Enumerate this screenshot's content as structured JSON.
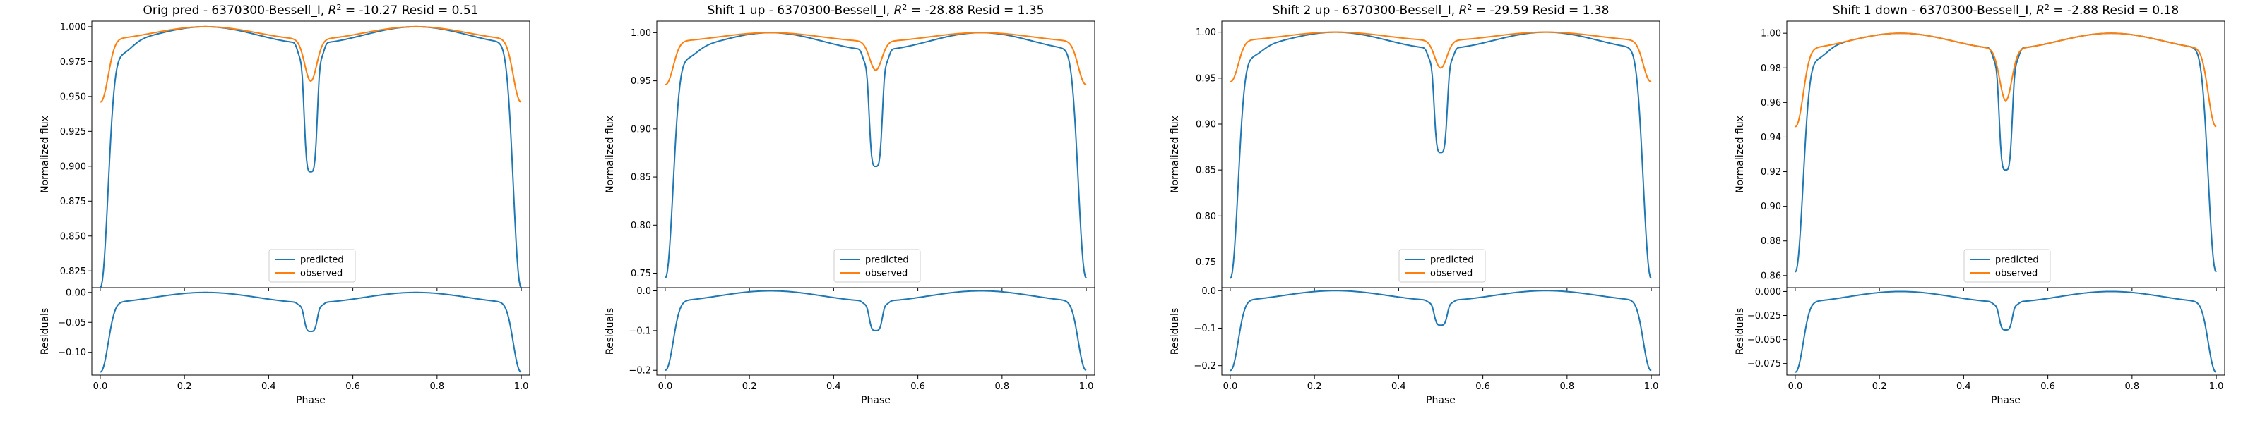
{
  "colors": {
    "predicted": "#1f77b4",
    "observed": "#ff7f0e",
    "frame": "#000000",
    "legend_border": "#cccccc"
  },
  "chart_data": [
    {
      "type": "line",
      "title_prefix": "Orig pred - 6370300-Bessell_I, ",
      "r2_symbol": "R",
      "r2_exp": "2",
      "title_suffix": " = -10.27 Resid = 0.51",
      "ylabel": "Normalized flux",
      "ylim": [
        0.813,
        1.004
      ],
      "yticks": [
        0.825,
        0.85,
        0.875,
        0.9,
        0.925,
        0.95,
        0.975,
        1.0
      ],
      "yticklabels": [
        "0.825",
        "0.850",
        "0.875",
        "0.900",
        "0.925",
        "0.950",
        "0.975",
        "1.000"
      ],
      "pred_shape": {
        "min": 0.813,
        "max": 1.0,
        "dip": 0.896,
        "shoulder": 0.974,
        "plateau_dip": 0.988
      },
      "obs_shape": {
        "edge": 0.946,
        "plateau": 0.991,
        "max": 1.0,
        "dip": 0.961
      },
      "legend": [
        "predicted",
        "observed"
      ],
      "resid": {
        "ylabel": "Residuals",
        "xlabel": "Phase",
        "ylim": [
          -0.138,
          0.008
        ],
        "yticks": [
          0.0,
          -0.05,
          -0.1
        ],
        "yticklabels": [
          "0.00",
          "−0.05",
          "−0.10"
        ],
        "shape": {
          "min": -0.133,
          "dip": -0.065,
          "shoulder": -0.017
        }
      },
      "xlim": [
        -0.02,
        1.02
      ],
      "xticks": [
        0.0,
        0.2,
        0.4,
        0.6,
        0.8,
        1.0
      ],
      "xticklabels": [
        "0.0",
        "0.2",
        "0.4",
        "0.6",
        "0.8",
        "1.0"
      ]
    },
    {
      "type": "line",
      "title_prefix": "Shift 1 up - 6370300-Bessell_I, ",
      "r2_symbol": "R",
      "r2_exp": "2",
      "title_suffix": " = -28.88 Resid = 1.35",
      "ylabel": "Normalized flux",
      "ylim": [
        0.735,
        1.012
      ],
      "yticks": [
        0.75,
        0.8,
        0.85,
        0.9,
        0.95,
        1.0
      ],
      "yticklabels": [
        "0.75",
        "0.80",
        "0.85",
        "0.90",
        "0.95",
        "1.00"
      ],
      "pred_shape": {
        "min": 0.745,
        "max": 1.0,
        "dip": 0.861,
        "shoulder": 0.965,
        "plateau_dip": 0.982
      },
      "obs_shape": {
        "edge": 0.946,
        "plateau": 0.991,
        "max": 1.0,
        "dip": 0.961
      },
      "legend": [
        "predicted",
        "observed"
      ],
      "resid": {
        "ylabel": "Residuals",
        "xlabel": "Phase",
        "ylim": [
          -0.212,
          0.008
        ],
        "yticks": [
          0.0,
          -0.1,
          -0.2
        ],
        "yticklabels": [
          "0.0",
          "−0.1",
          "−0.2"
        ],
        "shape": {
          "min": -0.2,
          "dip": -0.1,
          "shoulder": -0.026
        }
      },
      "xlim": [
        -0.02,
        1.02
      ],
      "xticks": [
        0.0,
        0.2,
        0.4,
        0.6,
        0.8,
        1.0
      ],
      "xticklabels": [
        "0.0",
        "0.2",
        "0.4",
        "0.6",
        "0.8",
        "1.0"
      ]
    },
    {
      "type": "line",
      "title_prefix": "Shift 2 up - 6370300-Bessell_I, ",
      "r2_symbol": "R",
      "r2_exp": "2",
      "title_suffix": " = -29.59 Resid = 1.38",
      "ylabel": "Normalized flux",
      "ylim": [
        0.722,
        1.012
      ],
      "yticks": [
        0.75,
        0.8,
        0.85,
        0.9,
        0.95,
        1.0
      ],
      "yticklabels": [
        "0.75",
        "0.80",
        "0.85",
        "0.90",
        "0.95",
        "1.00"
      ],
      "pred_shape": {
        "min": 0.732,
        "max": 1.0,
        "dip": 0.869,
        "shoulder": 0.965,
        "plateau_dip": 0.982
      },
      "obs_shape": {
        "edge": 0.946,
        "plateau": 0.991,
        "max": 1.0,
        "dip": 0.961
      },
      "legend": [
        "predicted",
        "observed"
      ],
      "resid": {
        "ylabel": "Residuals",
        "xlabel": "Phase",
        "ylim": [
          -0.225,
          0.008
        ],
        "yticks": [
          0.0,
          -0.1,
          -0.2
        ],
        "yticklabels": [
          "0.0",
          "−0.1",
          "−0.2"
        ],
        "shape": {
          "min": -0.213,
          "dip": -0.092,
          "shoulder": -0.026
        }
      },
      "xlim": [
        -0.02,
        1.02
      ],
      "xticks": [
        0.0,
        0.2,
        0.4,
        0.6,
        0.8,
        1.0
      ],
      "xticklabels": [
        "0.0",
        "0.2",
        "0.4",
        "0.6",
        "0.8",
        "1.0"
      ]
    },
    {
      "type": "line",
      "title_prefix": "Shift 1 down - 6370300-Bessell_I, ",
      "r2_symbol": "R",
      "r2_exp": "2",
      "title_suffix": " = -2.88 Resid = 0.18",
      "ylabel": "Normalized flux",
      "ylim": [
        0.853,
        1.007
      ],
      "yticks": [
        0.86,
        0.88,
        0.9,
        0.92,
        0.94,
        0.96,
        0.98,
        1.0
      ],
      "yticklabels": [
        "0.86",
        "0.88",
        "0.90",
        "0.92",
        "0.94",
        "0.96",
        "0.98",
        "1.00"
      ],
      "pred_shape": {
        "min": 0.862,
        "max": 1.0,
        "dip": 0.921,
        "shoulder": 0.98,
        "plateau_dip": 0.991
      },
      "obs_shape": {
        "edge": 0.946,
        "plateau": 0.991,
        "max": 1.0,
        "dip": 0.961
      },
      "legend": [
        "predicted",
        "observed"
      ],
      "resid": {
        "ylabel": "Residuals",
        "xlabel": "Phase",
        "ylim": [
          -0.087,
          0.004
        ],
        "yticks": [
          0.0,
          -0.025,
          -0.05,
          -0.075
        ],
        "yticklabels": [
          "0.000",
          "−0.025",
          "−0.050",
          "−0.075"
        ],
        "shape": {
          "min": -0.084,
          "dip": -0.04,
          "shoulder": -0.011
        }
      },
      "xlim": [
        -0.02,
        1.02
      ],
      "xticks": [
        0.0,
        0.2,
        0.4,
        0.6,
        0.8,
        1.0
      ],
      "xticklabels": [
        "0.0",
        "0.2",
        "0.4",
        "0.6",
        "0.8",
        "1.0"
      ]
    }
  ]
}
